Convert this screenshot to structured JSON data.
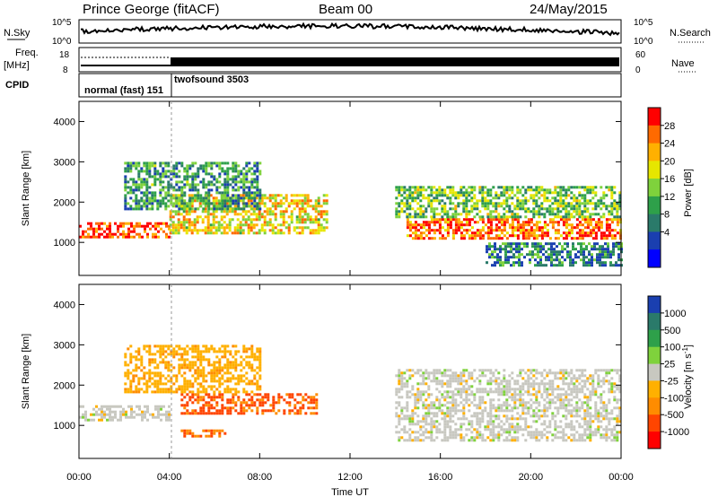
{
  "header": {
    "station": "Prince George (fitACF)",
    "beam": "Beam 00",
    "date": "24/May/2015"
  },
  "strips": {
    "nsky_label": "N.Sky",
    "nsearch_label": "N.Search",
    "nsky_ticks": [
      "10^5",
      "10^0"
    ],
    "nsky_right_ticks": [
      "10^5",
      "10^0"
    ],
    "freq_label": "Freq.",
    "freq_unit": "[MHz]",
    "freq_ticks": [
      "18",
      "8"
    ],
    "nave_label": "Nave",
    "nave_ticks": [
      "60",
      "0"
    ],
    "cpid_label": "CPID",
    "cpid_segments": [
      {
        "label": "normal (fast) 151",
        "start_hour": 0,
        "end_hour": 4
      },
      {
        "label": "twofsound 3503",
        "start_hour": 4,
        "end_hour": 24
      }
    ]
  },
  "power_colorbar": {
    "label": "Power [dB]",
    "ticks": [
      "28",
      "24",
      "20",
      "16",
      "12",
      "8",
      "4"
    ],
    "colors": [
      "#ff0000",
      "#ff6a00",
      "#ffb000",
      "#e6e600",
      "#7fd23c",
      "#2ea04a",
      "#2a7a6a",
      "#1a3fb0",
      "#0000ff"
    ]
  },
  "velocity_colorbar": {
    "label": "Velocity [m s^-1]",
    "ticks": [
      "1000",
      "500",
      "100",
      "25",
      "-25",
      "-100",
      "-500",
      "-1000"
    ],
    "colors": [
      "#1a3fb0",
      "#2a7a6a",
      "#2ea04a",
      "#7fd23c",
      "#c8c8c0",
      "#ffb000",
      "#ff8c00",
      "#ff4500",
      "#ff0000"
    ]
  },
  "chart_data": [
    {
      "type": "heatmap",
      "name": "power",
      "ylabel": "Slant Range [km]",
      "xlabel": "",
      "ylim": [
        180,
        4500
      ],
      "yticks": [
        1000,
        2000,
        3000,
        4000
      ],
      "xlim": [
        0,
        24
      ],
      "clabel": "Power [dB]",
      "features": [
        {
          "t0": 0.0,
          "t1": 4.0,
          "r0": 1100,
          "r1": 1500,
          "value": 28
        },
        {
          "t0": 4.0,
          "t1": 11.0,
          "r0": 1200,
          "r1": 2200,
          "value": 20
        },
        {
          "t0": 2.0,
          "t1": 8.0,
          "r0": 1800,
          "r1": 3000,
          "value": 10
        },
        {
          "t0": 14.5,
          "t1": 24.0,
          "r0": 1100,
          "r1": 1600,
          "value": 26
        },
        {
          "t0": 14.0,
          "t1": 24.0,
          "r0": 1600,
          "r1": 2400,
          "value": 14
        },
        {
          "t0": 18.0,
          "t1": 24.0,
          "r0": 400,
          "r1": 1000,
          "value": 8
        }
      ]
    },
    {
      "type": "heatmap",
      "name": "velocity",
      "ylabel": "Slant Range [km]",
      "xlabel": "Time UT",
      "ylim": [
        180,
        4500
      ],
      "yticks": [
        1000,
        2000,
        3000,
        4000
      ],
      "xlim": [
        0,
        24
      ],
      "xtick_labels": [
        "00:00",
        "04:00",
        "08:00",
        "12:00",
        "16:00",
        "20:00",
        "00:00"
      ],
      "clabel": "Velocity [m s^-1]",
      "features": [
        {
          "t0": 0.0,
          "t1": 4.0,
          "r0": 1100,
          "r1": 1500,
          "value": 0
        },
        {
          "t0": 4.5,
          "t1": 10.5,
          "r0": 1300,
          "r1": 1800,
          "value": -500
        },
        {
          "t0": 4.5,
          "t1": 6.5,
          "r0": 700,
          "r1": 900,
          "value": -400
        },
        {
          "t0": 2.0,
          "t1": 8.0,
          "r0": 1800,
          "r1": 3000,
          "value": -80
        },
        {
          "t0": 14.0,
          "t1": 24.0,
          "r0": 600,
          "r1": 2400,
          "value": 0
        }
      ]
    }
  ]
}
